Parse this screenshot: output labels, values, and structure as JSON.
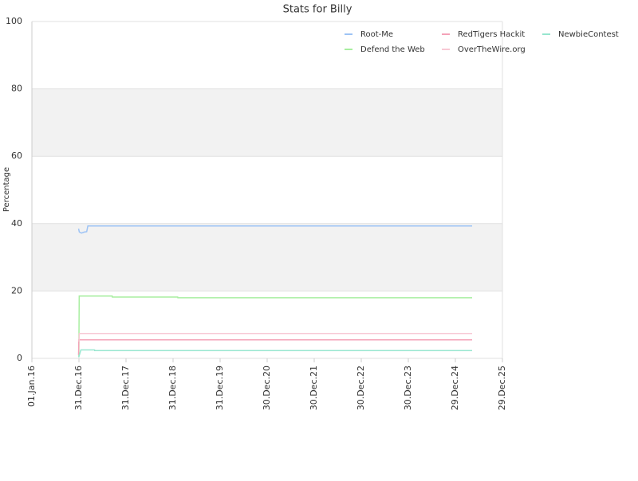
{
  "chart_data": {
    "type": "line",
    "title": "Stats for Billy",
    "y_label": "Percentage",
    "xlim": [
      "2016-01-01",
      "2025-12-29"
    ],
    "xticks": [
      {
        "value": "2016-01-01",
        "label": "01.Jan.16"
      },
      {
        "value": "2016-12-31",
        "label": "31.Dec.16"
      },
      {
        "value": "2017-12-31",
        "label": "31.Dec.17"
      },
      {
        "value": "2018-12-31",
        "label": "31.Dec.18"
      },
      {
        "value": "2019-12-31",
        "label": "31.Dec.19"
      },
      {
        "value": "2020-12-30",
        "label": "30.Dec.20"
      },
      {
        "value": "2021-12-30",
        "label": "30.Dec.21"
      },
      {
        "value": "2022-12-30",
        "label": "30.Dec.22"
      },
      {
        "value": "2023-12-30",
        "label": "30.Dec.23"
      },
      {
        "value": "2024-12-29",
        "label": "29.Dec.24"
      },
      {
        "value": "2025-12-29",
        "label": "29.Dec.25"
      }
    ],
    "ylim": [
      0,
      100
    ],
    "yticks": [
      0,
      20,
      40,
      60,
      80,
      100
    ],
    "grid": true,
    "legend": "top-right",
    "series": [
      {
        "name": "Root-Me",
        "color": "#9dc3f5",
        "x": [
          "2016-12-28",
          "2017-01-03",
          "2017-01-20",
          "2017-02-10",
          "2017-03-01",
          "2017-03-10",
          "2025-05-08"
        ],
        "values": [
          38.5,
          37.5,
          37.2,
          37.5,
          37.6,
          39.3,
          39.3
        ]
      },
      {
        "name": "Defend the Web",
        "color": "#a8eea0",
        "x": [
          "2016-12-30",
          "2017-01-02",
          "2017-09-15",
          "2017-09-16",
          "2019-02-05",
          "2019-02-06",
          "2025-05-08"
        ],
        "values": [
          0.5,
          18.5,
          18.5,
          18.2,
          18.2,
          18.0,
          18.0
        ]
      },
      {
        "name": "RedTigers Hackit",
        "color": "#f4a3b8",
        "x": [
          "2016-12-28",
          "2016-12-30",
          "2025-05-08"
        ],
        "values": [
          1,
          5.5,
          5.5
        ]
      },
      {
        "name": "OverTheWire.org",
        "color": "#f8c8d4",
        "x": [
          "2016-12-31",
          "2017-01-03",
          "2025-05-08"
        ],
        "values": [
          5,
          7.4,
          7.4
        ]
      },
      {
        "name": "NewbieContest",
        "color": "#97e6cf",
        "x": [
          "2016-12-29",
          "2017-01-15",
          "2017-05-01",
          "2017-05-02",
          "2025-05-08"
        ],
        "values": [
          0.3,
          2.5,
          2.5,
          2.3,
          2.3
        ]
      }
    ]
  }
}
